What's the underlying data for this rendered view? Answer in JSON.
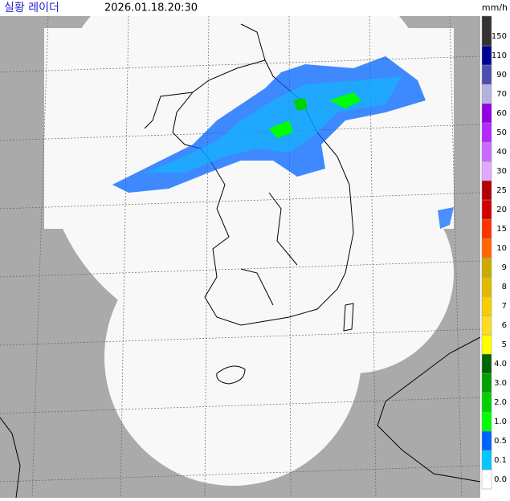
{
  "header": {
    "title": "실황 레이더",
    "timestamp": "2026.01.18.20:30",
    "unit": "mm/h"
  },
  "legend": [
    {
      "label": "0.0",
      "color": "#ffffff"
    },
    {
      "label": "0.1",
      "color": "#00c8ff"
    },
    {
      "label": "0.5",
      "color": "#0064ff"
    },
    {
      "label": "1.0",
      "color": "#00ff00"
    },
    {
      "label": "2.0",
      "color": "#00d200"
    },
    {
      "label": "3.0",
      "color": "#00a000"
    },
    {
      "label": "4.0",
      "color": "#006400"
    },
    {
      "label": "5",
      "color": "#ffff00"
    },
    {
      "label": "6",
      "color": "#ffdc1f"
    },
    {
      "label": "7",
      "color": "#f9cd00"
    },
    {
      "label": "8",
      "color": "#e0b900"
    },
    {
      "label": "9",
      "color": "#ccaa00"
    },
    {
      "label": "10",
      "color": "#ff6600"
    },
    {
      "label": "15",
      "color": "#ff3200"
    },
    {
      "label": "20",
      "color": "#d20000"
    },
    {
      "label": "25",
      "color": "#b40000"
    },
    {
      "label": "30",
      "color": "#e0a9ff"
    },
    {
      "label": "40",
      "color": "#c969ff"
    },
    {
      "label": "50",
      "color": "#b329ff"
    },
    {
      "label": "60",
      "color": "#9300e4"
    },
    {
      "label": "70",
      "color": "#b3b4de"
    },
    {
      "label": "90",
      "color": "#4c4eb1"
    },
    {
      "label": "110",
      "color": "#000390"
    },
    {
      "label": "150",
      "color": "#333333"
    }
  ]
}
